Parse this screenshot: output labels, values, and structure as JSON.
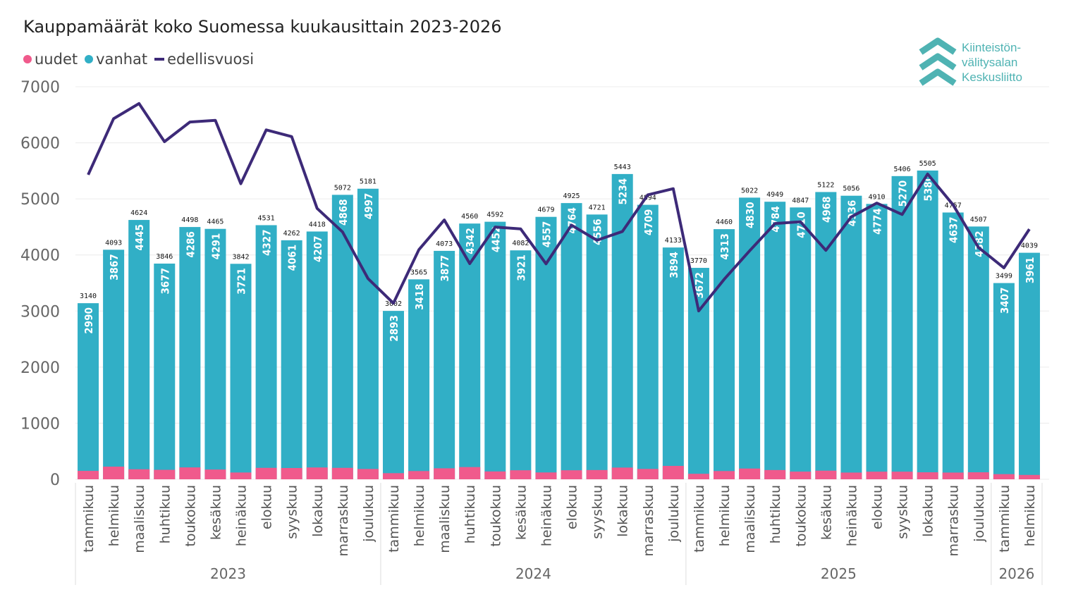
{
  "title": "Kauppamäärät koko Suomessa kuukausittain 2023-2026",
  "legend": [
    {
      "label": "uudet",
      "color": "#f05a8c",
      "shape": "dot"
    },
    {
      "label": "vanhat",
      "color": "#31afc6",
      "shape": "dot"
    },
    {
      "label": "edellisvuosi",
      "color": "#3d2a78",
      "shape": "line"
    }
  ],
  "logo": {
    "lines": [
      "Kiinteistön-",
      "välitysalan",
      "Keskusliitto"
    ],
    "color": "#4fb3b3"
  },
  "chart_data": {
    "type": "bar",
    "stacked": true,
    "title": "Kauppamäärät koko Suomessa kuukausittain 2023-2026",
    "ylim": [
      0,
      7000
    ],
    "yticks": [
      0,
      1000,
      2000,
      3000,
      4000,
      5000,
      6000,
      7000
    ],
    "grid": true,
    "legend_placement": "top-left",
    "years": [
      {
        "label": "2023",
        "months": 12
      },
      {
        "label": "2024",
        "months": 12
      },
      {
        "label": "2025",
        "months": 12
      },
      {
        "label": "2026",
        "months": 2
      }
    ],
    "categories": [
      "tammikuu",
      "helmikuu",
      "maaliskuu",
      "huhtikuu",
      "toukokuu",
      "kesäkuu",
      "heinäkuu",
      "elokuu",
      "syyskuu",
      "lokakuu",
      "marraskuu",
      "joulukuu",
      "tammikuu",
      "helmikuu",
      "maaliskuu",
      "huhtikuu",
      "toukokuu",
      "kesäkuu",
      "heinäkuu",
      "elokuu",
      "syyskuu",
      "lokakuu",
      "marraskuu",
      "joulukuu",
      "tammikuu",
      "helmikuu",
      "maaliskuu",
      "huhtikuu",
      "toukokuu",
      "kesäkuu",
      "heinäkuu",
      "elokuu",
      "syyskuu",
      "lokakuu",
      "marraskuu",
      "joulukuu",
      "tammikuu",
      "helmikuu"
    ],
    "totals": [
      3140,
      4093,
      4624,
      3846,
      4498,
      4465,
      3842,
      4531,
      4262,
      4418,
      5072,
      5181,
      3002,
      3565,
      4073,
      4560,
      4592,
      4082,
      4679,
      4925,
      4721,
      5443,
      4894,
      4133,
      3770,
      4460,
      5022,
      4949,
      4847,
      5122,
      5056,
      4910,
      5406,
      5505,
      4757,
      4507,
      3499,
      4039
    ],
    "series": [
      {
        "name": "vanhat",
        "values": [
          2990,
          3867,
          4445,
          3677,
          4286,
          4291,
          3721,
          4327,
          4061,
          4207,
          4868,
          4997,
          2893,
          3418,
          3877,
          4342,
          4452,
          3921,
          4557,
          4764,
          4556,
          5234,
          4709,
          3894,
          3672,
          4313,
          4830,
          4784,
          4710,
          4968,
          4936,
          4774,
          5270,
          5380,
          4637,
          4382,
          3407,
          3961
        ]
      },
      {
        "name": "uudet",
        "values": [
          150,
          226,
          179,
          169,
          212,
          174,
          121,
          204,
          201,
          211,
          204,
          184,
          109,
          147,
          196,
          218,
          140,
          161,
          122,
          161,
          165,
          209,
          185,
          239,
          98,
          147,
          192,
          165,
          137,
          154,
          120,
          136,
          136,
          125,
          120,
          125,
          92,
          78
        ]
      },
      {
        "name": "edellisvuosi",
        "type": "line",
        "values": [
          5430,
          6430,
          6700,
          6020,
          6370,
          6400,
          5270,
          6230,
          6110,
          4830,
          4410,
          3580,
          3140,
          4093,
          4624,
          3846,
          4498,
          4465,
          3842,
          4531,
          4262,
          4418,
          5072,
          5181,
          3002,
          3565,
          4073,
          4560,
          4592,
          4082,
          4679,
          4925,
          4721,
          5443,
          4894,
          4133,
          3770,
          4460
        ]
      }
    ]
  }
}
